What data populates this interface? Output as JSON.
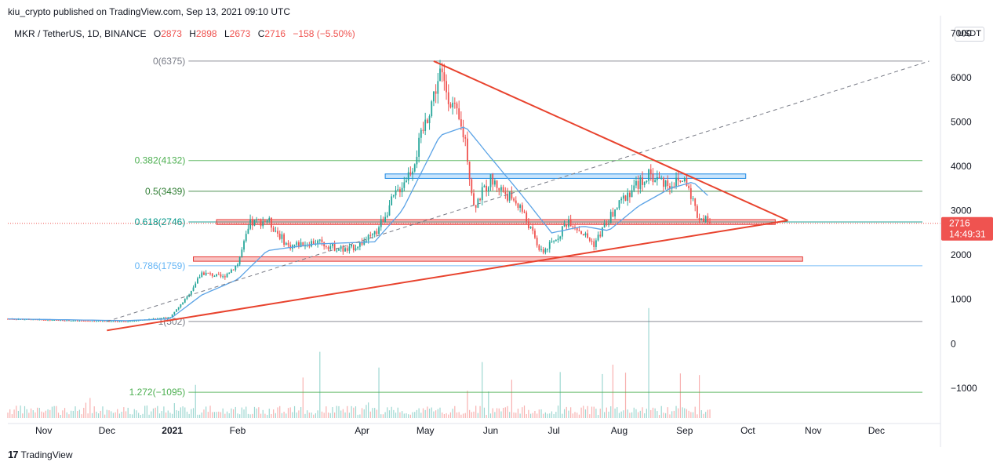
{
  "header": {
    "published": "kiu_crypto published on TradingView.com, Sep 13, 2021 09:10 UTC"
  },
  "legend": {
    "symbol": "MKR / TetherUS, 1D, BINANCE",
    "open_label": "O",
    "open": "2873",
    "high_label": "H",
    "high": "2898",
    "low_label": "L",
    "low": "2673",
    "close_label": "C",
    "close": "2716",
    "change": "−158 (−5.50%)"
  },
  "currency": "USDT",
  "price_tag": {
    "price": "2716",
    "countdown": "14:49:31"
  },
  "footer": {
    "brand": "TradingView"
  },
  "colors": {
    "up": "#26a69a",
    "down": "#ef5350",
    "ma": "#5ba3e6",
    "triangle": "#e8432e",
    "fib_green": "#4caf50",
    "fib_blue": "#64b5f6",
    "fib_gray": "#787b86"
  },
  "chart_data": {
    "type": "candlestick",
    "symbol": "MKR / TetherUS",
    "interval": "1D",
    "x_range": [
      "2020-10-15",
      "2021-12-31"
    ],
    "x_ticks": [
      "Nov",
      "Dec",
      "2021",
      "Feb",
      "Apr",
      "May",
      "Jun",
      "Jul",
      "Aug",
      "Sep",
      "Oct",
      "Nov",
      "Dec"
    ],
    "x_tick_dates": [
      "2020-11-01",
      "2020-12-01",
      "2021-01-01",
      "2021-02-01",
      "2021-04-01",
      "2021-05-01",
      "2021-06-01",
      "2021-07-01",
      "2021-08-01",
      "2021-09-01",
      "2021-10-01",
      "2021-11-01",
      "2021-12-01"
    ],
    "y_range": [
      -1800,
      7400
    ],
    "y_ticks": [
      7000,
      6000,
      5000,
      4000,
      3000,
      2000,
      1000,
      0,
      -1000
    ],
    "y_tick_labels": [
      "7000",
      "6000",
      "5000",
      "4000",
      "3000",
      "2000",
      "1000",
      "0",
      "−1000"
    ],
    "price_path": [
      [
        "2020-10-15",
        560
      ],
      [
        "2020-11-15",
        520
      ],
      [
        "2020-12-10",
        500
      ],
      [
        "2020-12-31",
        600
      ],
      [
        "2021-01-08",
        1050
      ],
      [
        "2021-01-15",
        1600
      ],
      [
        "2021-01-25",
        1500
      ],
      [
        "2021-02-01",
        1800
      ],
      [
        "2021-02-07",
        2700
      ],
      [
        "2021-02-15",
        2800
      ],
      [
        "2021-02-25",
        2200
      ],
      [
        "2021-03-10",
        2300
      ],
      [
        "2021-03-25",
        2100
      ],
      [
        "2021-04-07",
        2450
      ],
      [
        "2021-04-15",
        3200
      ],
      [
        "2021-04-25",
        4000
      ],
      [
        "2021-05-03",
        5300
      ],
      [
        "2021-05-08",
        6100
      ],
      [
        "2021-05-13",
        5500
      ],
      [
        "2021-05-20",
        4600
      ],
      [
        "2021-05-24",
        3100
      ],
      [
        "2021-06-01",
        3700
      ],
      [
        "2021-06-15",
        3100
      ],
      [
        "2021-06-25",
        2050
      ],
      [
        "2021-07-01",
        2300
      ],
      [
        "2021-07-08",
        2800
      ],
      [
        "2021-07-20",
        2250
      ],
      [
        "2021-07-27",
        2800
      ],
      [
        "2021-08-05",
        3400
      ],
      [
        "2021-08-15",
        3800
      ],
      [
        "2021-08-25",
        3600
      ],
      [
        "2021-09-02",
        3700
      ],
      [
        "2021-09-07",
        2900
      ],
      [
        "2021-09-13",
        2716
      ]
    ],
    "moving_average": [
      [
        "2020-10-15",
        560
      ],
      [
        "2020-12-10",
        520
      ],
      [
        "2020-12-31",
        560
      ],
      [
        "2021-01-15",
        1100
      ],
      [
        "2021-02-01",
        1450
      ],
      [
        "2021-02-15",
        2100
      ],
      [
        "2021-03-10",
        2250
      ],
      [
        "2021-04-07",
        2300
      ],
      [
        "2021-04-20",
        3000
      ],
      [
        "2021-05-08",
        4700
      ],
      [
        "2021-05-20",
        4900
      ],
      [
        "2021-06-01",
        4200
      ],
      [
        "2021-06-15",
        3400
      ],
      [
        "2021-06-30",
        2500
      ],
      [
        "2021-07-15",
        2650
      ],
      [
        "2021-07-27",
        2550
      ],
      [
        "2021-08-10",
        3100
      ],
      [
        "2021-08-25",
        3500
      ],
      [
        "2021-09-05",
        3650
      ],
      [
        "2021-09-13",
        3300
      ]
    ],
    "fib_levels": [
      {
        "label": "0(6375)",
        "value": 6375,
        "color": "#787b86"
      },
      {
        "label": "0.382(4132)",
        "value": 4132,
        "color": "#4caf50"
      },
      {
        "label": "0.5(3439)",
        "value": 3439,
        "color": "#2e7d32"
      },
      {
        "label": "0.618(2746)",
        "value": 2746,
        "color": "#009688"
      },
      {
        "label": "0.786(1759)",
        "value": 1759,
        "color": "#64b5f6"
      },
      {
        "label": "1(502)",
        "value": 502,
        "color": "#787b86"
      },
      {
        "label": "1.272(−1095)",
        "value": -1095,
        "color": "#4caf50"
      }
    ],
    "zones": [
      {
        "start": "2021-04-12",
        "end": "2021-09-30",
        "low": 3730,
        "high": 3830,
        "color": "blue"
      },
      {
        "start": "2021-01-22",
        "end": "2021-10-14",
        "low": 2690,
        "high": 2800,
        "color": "red"
      },
      {
        "start": "2021-01-11",
        "end": "2021-10-27",
        "low": 1860,
        "high": 1960,
        "color": "red"
      }
    ],
    "triangle_upper": [
      [
        "2021-05-05",
        6375
      ],
      [
        "2021-10-20",
        2780
      ]
    ],
    "triangle_lower": [
      [
        "2020-12-01",
        300
      ],
      [
        "2021-10-20",
        2780
      ]
    ],
    "dashed_projection": [
      [
        "2020-12-01",
        502
      ],
      [
        "2021-12-26",
        6375
      ]
    ],
    "current_price": 2716
  }
}
